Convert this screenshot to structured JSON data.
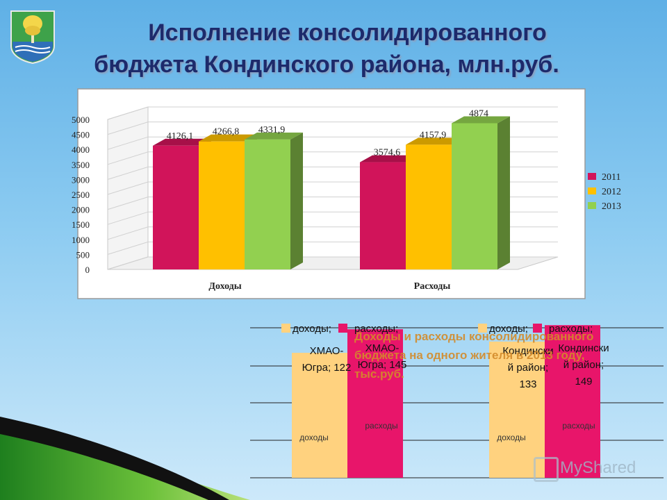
{
  "slide": {
    "title_line1": "Исполнение консолидированного",
    "title_line2": "бюджета  Кондинского района, млн.руб.",
    "watermark": "MyShared"
  },
  "colors": {
    "series_2011": "#d1145a",
    "series_2012": "#ffc000",
    "series_2013": "#92d050",
    "title": "#1d2a6b",
    "per_capita_income": "#ffd27f",
    "per_capita_expense": "#e8156a",
    "per_capita_title": "#d38b2a"
  },
  "chart_data": [
    {
      "type": "bar",
      "categories": [
        "Доходы",
        "Расходы"
      ],
      "series": [
        {
          "name": "2011",
          "values": [
            4126.1,
            3574.6
          ]
        },
        {
          "name": "2012",
          "values": [
            4266.8,
            4157.9
          ]
        },
        {
          "name": "2013",
          "values": [
            4331.9,
            4874
          ]
        }
      ],
      "data_labels": [
        [
          "4126,1",
          "4266,8",
          "4331,9"
        ],
        [
          "3574,6",
          "4157,9",
          "4874"
        ]
      ],
      "yticks": [
        "0",
        "500",
        "1000",
        "1500",
        "2000",
        "2500",
        "3000",
        "3500",
        "4000",
        "4500",
        "5000"
      ],
      "ylim": [
        0,
        5000
      ],
      "grid": true,
      "legend": "right",
      "title": "",
      "xlabel": "",
      "ylabel": ""
    },
    {
      "type": "bar",
      "title": "Доходы и расходы консолидированного бюджета на одного жителя в 2013 году, тыс.руб.",
      "categories": [
        "ХМАО-Югра",
        "Кондинский район"
      ],
      "series": [
        {
          "name": "доходы",
          "values": [
            122,
            133
          ]
        },
        {
          "name": "расходы",
          "values": [
            145,
            149
          ]
        }
      ],
      "legend_items": [
        "доходы;",
        "расходы;",
        "доходы;",
        "расходы;"
      ],
      "label_lines": [
        [
          "ХМАО-",
          "Югра; 122"
        ],
        [
          "ХМАО-",
          "Югра; 145"
        ],
        [
          "Кондински",
          "й район;",
          "133"
        ],
        [
          "Кондински",
          "й район;",
          "149"
        ]
      ],
      "inner_labels": [
        "доходы",
        "расходы",
        "доходы",
        "расходы"
      ],
      "ylim": [
        0,
        160
      ],
      "grid": true,
      "legend": "top"
    }
  ]
}
